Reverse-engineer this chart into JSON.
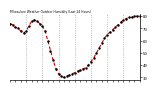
{
  "title": "Milwaukee Weather Outdoor Humidity (Last 24 Hours)",
  "ylim": [
    28,
    82
  ],
  "xlim": [
    0,
    24
  ],
  "yticks": [
    30,
    40,
    50,
    60,
    70,
    80
  ],
  "ytick_labels": [
    "3.",
    "4.",
    "5.",
    "6.",
    "7.",
    "8."
  ],
  "grid_x": [
    3,
    6,
    9,
    12,
    15,
    18,
    21
  ],
  "line_color": "#cc0000",
  "marker_color": "#000000",
  "background_color": "#ffffff",
  "grid_color": "#999999",
  "title_color": "#000000",
  "x": [
    0,
    0.5,
    1,
    1.5,
    2,
    2.5,
    3,
    3.5,
    4,
    4.5,
    5,
    5.5,
    6,
    6.5,
    7,
    7.5,
    8,
    8.5,
    9,
    9.5,
    10,
    10.5,
    11,
    11.5,
    12,
    12.5,
    13,
    13.5,
    14,
    14.5,
    15,
    15.5,
    16,
    16.5,
    17,
    17.5,
    18,
    18.5,
    19,
    19.5,
    20,
    20.5,
    21,
    21.5,
    22,
    22.5,
    23,
    23.5,
    24
  ],
  "y": [
    74,
    73,
    71,
    70,
    68,
    66,
    68,
    72,
    76,
    77,
    76,
    74,
    72,
    68,
    60,
    52,
    44,
    37,
    33,
    31,
    30,
    31,
    32,
    33,
    34,
    35,
    36,
    37,
    38,
    40,
    43,
    46,
    50,
    54,
    58,
    62,
    65,
    67,
    69,
    71,
    73,
    75,
    77,
    78,
    79,
    79,
    80,
    80,
    80
  ],
  "xtick_positions": [
    0,
    1,
    2,
    3,
    4,
    5,
    6,
    7,
    8,
    9,
    10,
    11,
    12,
    13,
    14,
    15,
    16,
    17,
    18,
    19,
    20,
    21,
    22,
    23,
    24
  ]
}
